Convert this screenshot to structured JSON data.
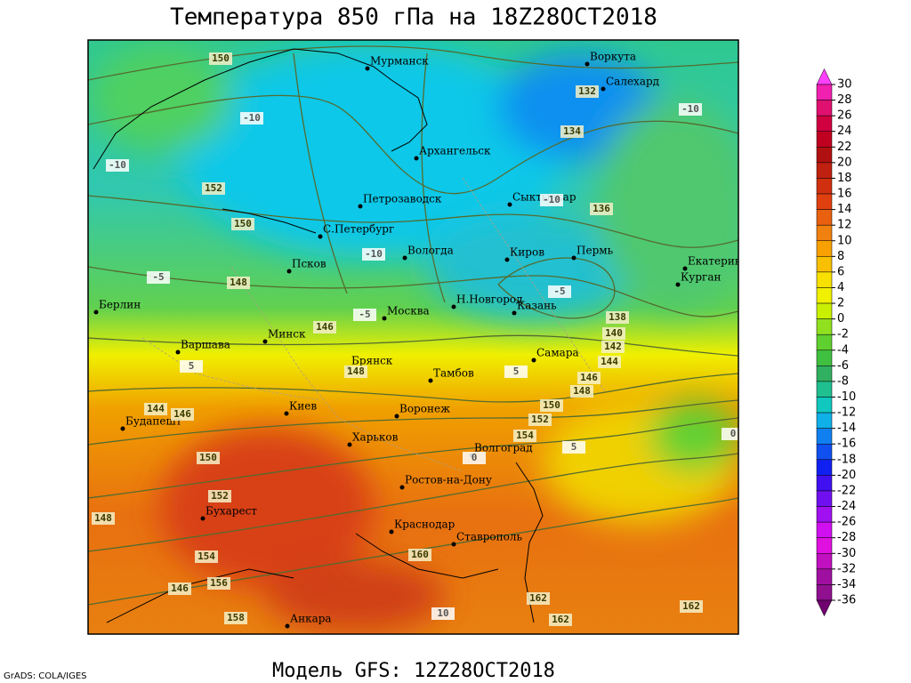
{
  "header": {
    "title": "Температура 850 гПа на 18Z28OCT2018"
  },
  "footer": {
    "model": "Модель GFS: 12Z28OCT2018",
    "credit": "GrADS: COLA/IGES"
  },
  "cities": [
    "Мурманск",
    "Воркута",
    "Салехард",
    "Архангельск",
    "Петрозаводск",
    "Сыктывкар",
    "С.Петербург",
    "Вологда",
    "Киров",
    "Пермь",
    "Екатеринбург",
    "Курган",
    "Псков",
    "Берлин",
    "Н.Новгород",
    "Москва",
    "Казань",
    "Минск",
    "Варшава",
    "Самара",
    "Брянск",
    "Тамбов",
    "Киев",
    "Воронеж",
    "Будапешт",
    "Харьков",
    "Волгоград",
    "Ростов-на-Дону",
    "Бухарест",
    "Краснодар",
    "Ставрополь",
    "Анкара"
  ],
  "contour_labels": [
    150,
    152,
    150,
    148,
    146,
    144,
    146,
    148,
    150,
    152,
    154,
    156,
    158,
    160,
    162,
    162,
    162,
    132,
    134,
    136,
    138,
    140,
    142,
    144,
    146,
    148,
    150,
    152,
    154,
    148,
    146,
    -10,
    -10,
    -10,
    -5,
    -5,
    -5,
    -10,
    -10,
    5,
    5,
    0,
    0,
    5,
    10
  ],
  "colorbar": {
    "levels": [
      30,
      28,
      26,
      24,
      22,
      20,
      18,
      16,
      14,
      12,
      10,
      8,
      6,
      4,
      2,
      0,
      -2,
      -4,
      -6,
      -8,
      -10,
      -12,
      -14,
      -16,
      -18,
      -20,
      -22,
      -24,
      -26,
      -28,
      -30,
      -32,
      -34,
      -36
    ],
    "colors": [
      "#ff40ff",
      "#f020b0",
      "#e01070",
      "#d00040",
      "#c00020",
      "#b01010",
      "#c02010",
      "#d03010",
      "#e04010",
      "#e86010",
      "#f08010",
      "#f8a000",
      "#f8c000",
      "#f8e000",
      "#f0f000",
      "#c8f000",
      "#90e020",
      "#60d030",
      "#40c040",
      "#30b060",
      "#20c090",
      "#10c8c0",
      "#10b0e8",
      "#1080f0",
      "#1050f0",
      "#1020f0",
      "#4010f0",
      "#7010f0",
      "#a010f0",
      "#d010f0",
      "#e010e0",
      "#c010c0",
      "#a010a0",
      "#901090",
      "#700070"
    ]
  }
}
